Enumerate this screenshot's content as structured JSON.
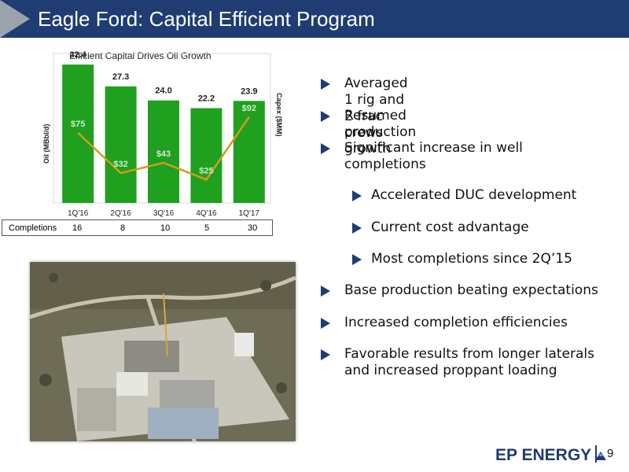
{
  "slide": {
    "title": "Eagle Ford: Capital Efficient Program",
    "page_number": "9"
  },
  "bullets": [
    {
      "text": "Averaged 1 rig and 2 frac crews",
      "level": 1
    },
    {
      "text": "Resumed production growth",
      "level": 1
    },
    {
      "text": "Significant increase in well completions",
      "level": 1
    },
    {
      "text": "Accelerated DUC development",
      "level": 2
    },
    {
      "text": "Current cost advantage",
      "level": 2
    },
    {
      "text": "Most completions since 2Q’15",
      "level": 2
    },
    {
      "text": "Base production beating expectations",
      "level": 1
    },
    {
      "text": "Increased completion efficiencies",
      "level": 1
    },
    {
      "text": "Favorable results from longer laterals and increased proppant loading",
      "level": 1
    }
  ],
  "logo": {
    "text": "EP ENERGY"
  },
  "completions": {
    "label": "Completions",
    "values": [
      "16",
      "8",
      "10",
      "5",
      "30"
    ]
  },
  "colors": {
    "header": "#1f3c73",
    "bar": "#1fa01f",
    "line": "#d49a1c",
    "capex_label": "#cfe9cf"
  },
  "chart_data": {
    "type": "bar",
    "title": "Efficient Capital Drives Oil Growth",
    "categories": [
      "1Q'16",
      "2Q'16",
      "3Q'16",
      "4Q'16",
      "1Q'17"
    ],
    "ylabel": "Oil (MBbl/d)",
    "y2label": "Capex ($MM)",
    "ylim": [
      0,
      35
    ],
    "y2lim": [
      0,
      160
    ],
    "series": [
      {
        "values": [
          32.4,
          27.3,
          24.0,
          22.2,
          23.9
        ],
        "labels": [
          "32.4",
          "27.3",
          "24.0",
          "22.2",
          "23.9"
        ],
        "type": "bar",
        "axis": "left"
      },
      {
        "values": [
          75,
          32,
          43,
          25,
          92
        ],
        "labels": [
          "$75",
          "$32",
          "$43",
          "$25",
          "$92"
        ],
        "type": "line",
        "axis": "right"
      }
    ]
  },
  "photo": {
    "icon": "frac-site-aerial-photo"
  }
}
